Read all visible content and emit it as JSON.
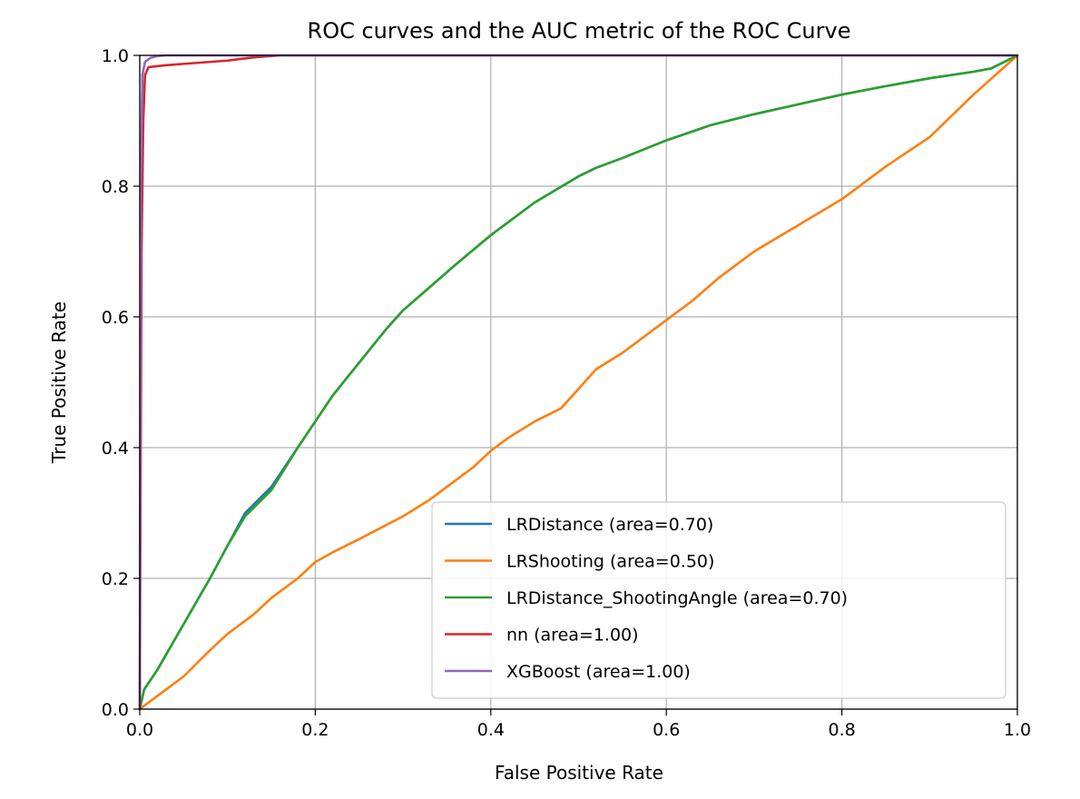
{
  "chart_data": {
    "type": "line",
    "title": "ROC curves and the AUC metric of the ROC Curve",
    "xlabel": "False Positive Rate",
    "ylabel": "True Positive Rate",
    "xlim": [
      0.0,
      1.0
    ],
    "ylim": [
      0.0,
      1.0
    ],
    "x_ticks": [
      "0.0",
      "0.2",
      "0.4",
      "0.6",
      "0.8",
      "1.0"
    ],
    "y_ticks": [
      "0.0",
      "0.2",
      "0.4",
      "0.6",
      "0.8",
      "1.0"
    ],
    "grid": true,
    "legend_position": "lower-right",
    "series": [
      {
        "name": "LRDistance (area=0.70)",
        "color": "#1f77b4",
        "points": [
          [
            0,
            0
          ],
          [
            0.005,
            0.03
          ],
          [
            0.02,
            0.06
          ],
          [
            0.05,
            0.13
          ],
          [
            0.08,
            0.2
          ],
          [
            0.1,
            0.25
          ],
          [
            0.12,
            0.3
          ],
          [
            0.15,
            0.34
          ],
          [
            0.18,
            0.4
          ],
          [
            0.2,
            0.44
          ],
          [
            0.22,
            0.48
          ],
          [
            0.25,
            0.53
          ],
          [
            0.28,
            0.58
          ],
          [
            0.3,
            0.61
          ],
          [
            0.33,
            0.645
          ],
          [
            0.36,
            0.68
          ],
          [
            0.4,
            0.725
          ],
          [
            0.45,
            0.775
          ],
          [
            0.5,
            0.815
          ],
          [
            0.52,
            0.828
          ],
          [
            0.55,
            0.843
          ],
          [
            0.6,
            0.87
          ],
          [
            0.65,
            0.893
          ],
          [
            0.7,
            0.91
          ],
          [
            0.75,
            0.925
          ],
          [
            0.8,
            0.94
          ],
          [
            0.85,
            0.953
          ],
          [
            0.9,
            0.965
          ],
          [
            0.95,
            0.975
          ],
          [
            0.97,
            0.98
          ],
          [
            1.0,
            1.0
          ]
        ]
      },
      {
        "name": "LRShooting (area=0.50)",
        "color": "#ff7f0e",
        "points": [
          [
            0,
            0
          ],
          [
            0.02,
            0.02
          ],
          [
            0.05,
            0.05
          ],
          [
            0.08,
            0.09
          ],
          [
            0.1,
            0.115
          ],
          [
            0.13,
            0.145
          ],
          [
            0.15,
            0.17
          ],
          [
            0.18,
            0.2
          ],
          [
            0.2,
            0.225
          ],
          [
            0.22,
            0.24
          ],
          [
            0.25,
            0.26
          ],
          [
            0.3,
            0.295
          ],
          [
            0.33,
            0.32
          ],
          [
            0.36,
            0.35
          ],
          [
            0.38,
            0.37
          ],
          [
            0.4,
            0.395
          ],
          [
            0.42,
            0.415
          ],
          [
            0.45,
            0.44
          ],
          [
            0.48,
            0.46
          ],
          [
            0.5,
            0.49
          ],
          [
            0.52,
            0.52
          ],
          [
            0.55,
            0.545
          ],
          [
            0.58,
            0.575
          ],
          [
            0.6,
            0.595
          ],
          [
            0.63,
            0.625
          ],
          [
            0.66,
            0.66
          ],
          [
            0.7,
            0.7
          ],
          [
            0.75,
            0.74
          ],
          [
            0.8,
            0.78
          ],
          [
            0.85,
            0.83
          ],
          [
            0.9,
            0.875
          ],
          [
            0.95,
            0.94
          ],
          [
            1.0,
            1.0
          ]
        ]
      },
      {
        "name": "LRDistance_ShootingAngle (area=0.70)",
        "color": "#2ca02c",
        "points": [
          [
            0,
            0
          ],
          [
            0.005,
            0.03
          ],
          [
            0.02,
            0.06
          ],
          [
            0.05,
            0.13
          ],
          [
            0.08,
            0.2
          ],
          [
            0.1,
            0.25
          ],
          [
            0.12,
            0.295
          ],
          [
            0.15,
            0.335
          ],
          [
            0.18,
            0.4
          ],
          [
            0.2,
            0.44
          ],
          [
            0.22,
            0.48
          ],
          [
            0.25,
            0.53
          ],
          [
            0.28,
            0.58
          ],
          [
            0.3,
            0.61
          ],
          [
            0.33,
            0.645
          ],
          [
            0.36,
            0.68
          ],
          [
            0.4,
            0.725
          ],
          [
            0.45,
            0.775
          ],
          [
            0.5,
            0.815
          ],
          [
            0.52,
            0.828
          ],
          [
            0.55,
            0.843
          ],
          [
            0.6,
            0.87
          ],
          [
            0.65,
            0.893
          ],
          [
            0.7,
            0.91
          ],
          [
            0.75,
            0.925
          ],
          [
            0.8,
            0.94
          ],
          [
            0.85,
            0.953
          ],
          [
            0.9,
            0.965
          ],
          [
            0.95,
            0.975
          ],
          [
            0.97,
            0.98
          ],
          [
            1.0,
            1.0
          ]
        ]
      },
      {
        "name": "nn (area=1.00)",
        "color": "#d62728",
        "points": [
          [
            0,
            0
          ],
          [
            0.002,
            0.7
          ],
          [
            0.004,
            0.9
          ],
          [
            0.006,
            0.97
          ],
          [
            0.01,
            0.982
          ],
          [
            0.03,
            0.985
          ],
          [
            0.06,
            0.988
          ],
          [
            0.1,
            0.992
          ],
          [
            0.13,
            0.997
          ],
          [
            0.16,
            1.0
          ],
          [
            1.0,
            1.0
          ]
        ]
      },
      {
        "name": "XGBoost (area=1.00)",
        "color": "#9467bd",
        "points": [
          [
            0,
            0
          ],
          [
            0.001,
            0.8
          ],
          [
            0.003,
            0.97
          ],
          [
            0.006,
            0.99
          ],
          [
            0.012,
            0.996
          ],
          [
            0.02,
            0.999
          ],
          [
            0.03,
            1.0
          ],
          [
            1.0,
            1.0
          ]
        ]
      }
    ]
  }
}
